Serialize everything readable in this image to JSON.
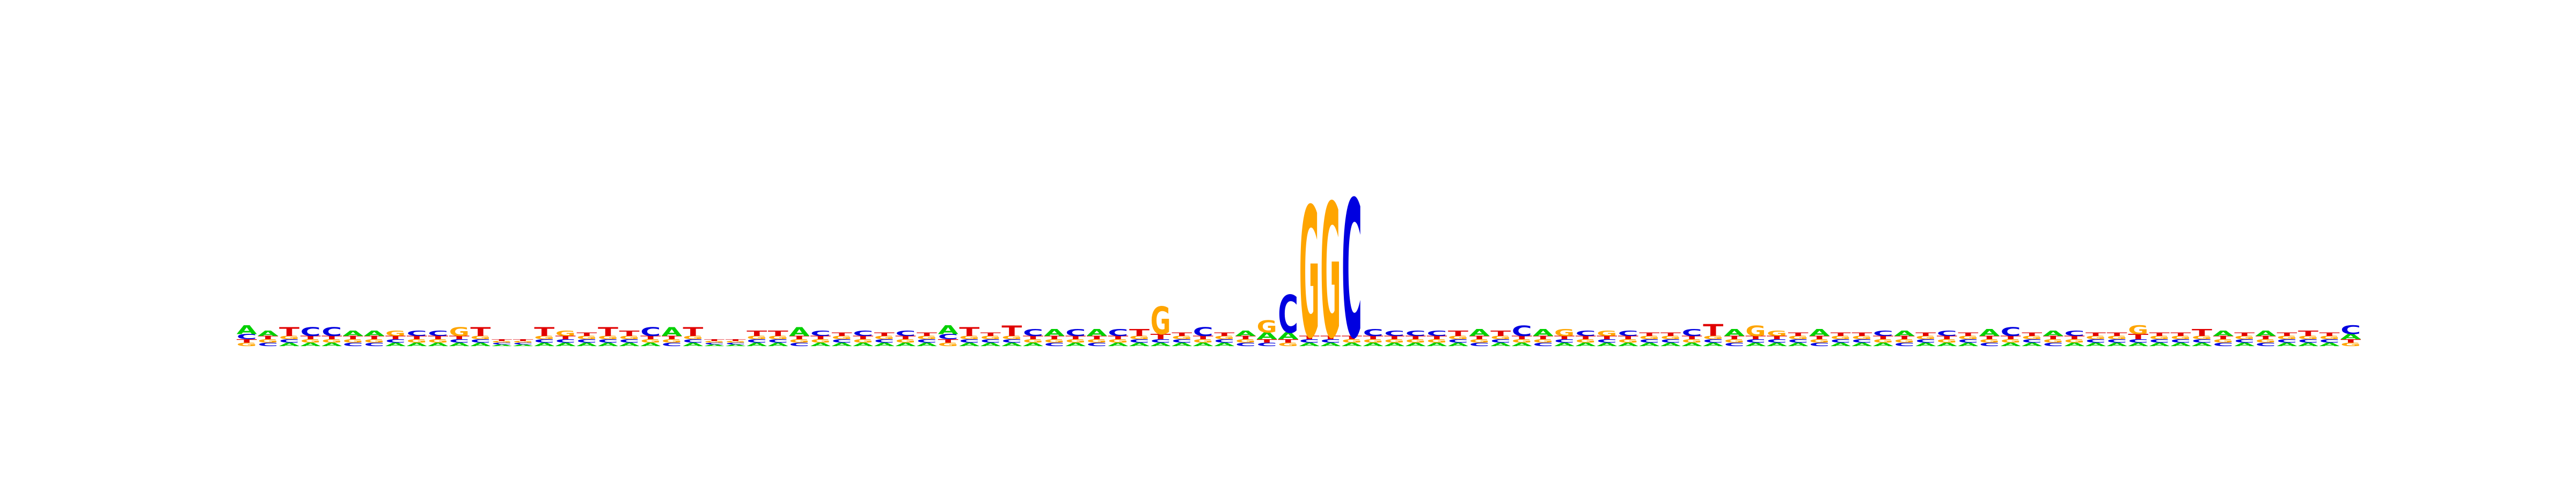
{
  "chart_data": {
    "type": "sequence-logo",
    "title": "",
    "xlabel": "",
    "ylabel": "",
    "alphabet": [
      "A",
      "C",
      "G",
      "T"
    ],
    "colors": {
      "A": "#00d000",
      "C": "#0000e0",
      "G": "#ffa500",
      "T": "#e00000"
    },
    "ylim": [
      0,
      2
    ],
    "positions": [
      {
        "A": 0.05,
        "C": 0.03,
        "G": 0.02,
        "T": 0.02
      },
      {
        "A": 0.03,
        "C": 0.02,
        "G": 0.02,
        "T": 0.02
      },
      {
        "A": 0.02,
        "C": 0.02,
        "G": 0.02,
        "T": 0.05
      },
      {
        "A": 0.02,
        "C": 0.05,
        "G": 0.02,
        "T": 0.02
      },
      {
        "A": 0.02,
        "C": 0.05,
        "G": 0.02,
        "T": 0.02
      },
      {
        "A": 0.03,
        "C": 0.02,
        "G": 0.02,
        "T": 0.02
      },
      {
        "A": 0.03,
        "C": 0.02,
        "G": 0.02,
        "T": 0.02
      },
      {
        "A": 0.02,
        "C": 0.02,
        "G": 0.03,
        "T": 0.02
      },
      {
        "A": 0.02,
        "C": 0.03,
        "G": 0.02,
        "T": 0.02
      },
      {
        "A": 0.02,
        "C": 0.03,
        "G": 0.02,
        "T": 0.02
      },
      {
        "A": 0.02,
        "C": 0.02,
        "G": 0.05,
        "T": 0.02
      },
      {
        "A": 0.02,
        "C": 0.02,
        "G": 0.02,
        "T": 0.05
      },
      {
        "A": 0.01,
        "C": 0.01,
        "G": 0.01,
        "T": 0.01
      },
      {
        "A": 0.01,
        "C": 0.01,
        "G": 0.01,
        "T": 0.01
      },
      {
        "A": 0.02,
        "C": 0.02,
        "G": 0.02,
        "T": 0.05
      },
      {
        "A": 0.02,
        "C": 0.02,
        "G": 0.03,
        "T": 0.02
      },
      {
        "A": 0.02,
        "C": 0.02,
        "G": 0.02,
        "T": 0.02
      },
      {
        "A": 0.02,
        "C": 0.02,
        "G": 0.02,
        "T": 0.05
      },
      {
        "A": 0.02,
        "C": 0.02,
        "G": 0.02,
        "T": 0.03
      },
      {
        "A": 0.02,
        "C": 0.05,
        "G": 0.02,
        "T": 0.02
      },
      {
        "A": 0.05,
        "C": 0.02,
        "G": 0.02,
        "T": 0.02
      },
      {
        "A": 0.02,
        "C": 0.02,
        "G": 0.02,
        "T": 0.05
      },
      {
        "A": 0.01,
        "C": 0.01,
        "G": 0.01,
        "T": 0.01
      },
      {
        "A": 0.01,
        "C": 0.01,
        "G": 0.01,
        "T": 0.01
      },
      {
        "A": 0.02,
        "C": 0.02,
        "G": 0.02,
        "T": 0.03
      },
      {
        "A": 0.02,
        "C": 0.02,
        "G": 0.02,
        "T": 0.03
      },
      {
        "A": 0.05,
        "C": 0.02,
        "G": 0.02,
        "T": 0.02
      },
      {
        "A": 0.02,
        "C": 0.03,
        "G": 0.02,
        "T": 0.02
      },
      {
        "A": 0.02,
        "C": 0.02,
        "G": 0.02,
        "T": 0.02
      },
      {
        "A": 0.02,
        "C": 0.03,
        "G": 0.02,
        "T": 0.02
      },
      {
        "A": 0.02,
        "C": 0.02,
        "G": 0.02,
        "T": 0.02
      },
      {
        "A": 0.02,
        "C": 0.03,
        "G": 0.02,
        "T": 0.02
      },
      {
        "A": 0.02,
        "C": 0.02,
        "G": 0.02,
        "T": 0.02
      },
      {
        "A": 0.05,
        "C": 0.03,
        "G": 0.02,
        "T": 0.02
      },
      {
        "A": 0.02,
        "C": 0.02,
        "G": 0.02,
        "T": 0.05
      },
      {
        "A": 0.02,
        "C": 0.02,
        "G": 0.02,
        "T": 0.02
      },
      {
        "A": 0.02,
        "C": 0.02,
        "G": 0.02,
        "T": 0.06
      },
      {
        "A": 0.02,
        "C": 0.04,
        "G": 0.02,
        "T": 0.02
      },
      {
        "A": 0.04,
        "C": 0.02,
        "G": 0.02,
        "T": 0.02
      },
      {
        "A": 0.02,
        "C": 0.04,
        "G": 0.02,
        "T": 0.02
      },
      {
        "A": 0.04,
        "C": 0.02,
        "G": 0.02,
        "T": 0.02
      },
      {
        "A": 0.02,
        "C": 0.04,
        "G": 0.02,
        "T": 0.02
      },
      {
        "A": 0.02,
        "C": 0.02,
        "G": 0.02,
        "T": 0.04
      },
      {
        "A": 0.02,
        "C": 0.02,
        "G": 0.16,
        "T": 0.03
      },
      {
        "A": 0.02,
        "C": 0.02,
        "G": 0.02,
        "T": 0.02
      },
      {
        "A": 0.02,
        "C": 0.05,
        "G": 0.02,
        "T": 0.02
      },
      {
        "A": 0.02,
        "C": 0.02,
        "G": 0.02,
        "T": 0.02
      },
      {
        "A": 0.03,
        "C": 0.02,
        "G": 0.02,
        "T": 0.02
      },
      {
        "A": 0.04,
        "C": 0.02,
        "G": 0.07,
        "T": 0.02
      },
      {
        "A": 0.04,
        "C": 0.22,
        "G": 0.02,
        "T": 0.02
      },
      {
        "A": 0.02,
        "C": 0.02,
        "G": 0.76,
        "T": 0.02
      },
      {
        "A": 0.02,
        "C": 0.02,
        "G": 0.78,
        "T": 0.02
      },
      {
        "A": 0.02,
        "C": 0.8,
        "G": 0.02,
        "T": 0.02
      },
      {
        "A": 0.02,
        "C": 0.04,
        "G": 0.02,
        "T": 0.02
      },
      {
        "A": 0.02,
        "C": 0.03,
        "G": 0.02,
        "T": 0.02
      },
      {
        "A": 0.02,
        "C": 0.03,
        "G": 0.02,
        "T": 0.02
      },
      {
        "A": 0.02,
        "C": 0.03,
        "G": 0.02,
        "T": 0.02
      },
      {
        "A": 0.02,
        "C": 0.02,
        "G": 0.02,
        "T": 0.03
      },
      {
        "A": 0.04,
        "C": 0.02,
        "G": 0.02,
        "T": 0.02
      },
      {
        "A": 0.02,
        "C": 0.02,
        "G": 0.02,
        "T": 0.03
      },
      {
        "A": 0.02,
        "C": 0.06,
        "G": 0.02,
        "T": 0.02
      },
      {
        "A": 0.04,
        "C": 0.02,
        "G": 0.02,
        "T": 0.02
      },
      {
        "A": 0.02,
        "C": 0.02,
        "G": 0.04,
        "T": 0.02
      },
      {
        "A": 0.02,
        "C": 0.03,
        "G": 0.02,
        "T": 0.02
      },
      {
        "A": 0.02,
        "C": 0.02,
        "G": 0.03,
        "T": 0.02
      },
      {
        "A": 0.02,
        "C": 0.03,
        "G": 0.02,
        "T": 0.02
      },
      {
        "A": 0.02,
        "C": 0.02,
        "G": 0.02,
        "T": 0.02
      },
      {
        "A": 0.02,
        "C": 0.02,
        "G": 0.02,
        "T": 0.02
      },
      {
        "A": 0.02,
        "C": 0.04,
        "G": 0.02,
        "T": 0.02
      },
      {
        "A": 0.02,
        "C": 0.02,
        "G": 0.02,
        "T": 0.07
      },
      {
        "A": 0.04,
        "C": 0.02,
        "G": 0.02,
        "T": 0.02
      },
      {
        "A": 0.02,
        "C": 0.02,
        "G": 0.06,
        "T": 0.02
      },
      {
        "A": 0.02,
        "C": 0.02,
        "G": 0.03,
        "T": 0.02
      },
      {
        "A": 0.02,
        "C": 0.02,
        "G": 0.02,
        "T": 0.02
      },
      {
        "A": 0.04,
        "C": 0.02,
        "G": 0.02,
        "T": 0.02
      },
      {
        "A": 0.02,
        "C": 0.02,
        "G": 0.02,
        "T": 0.02
      },
      {
        "A": 0.02,
        "C": 0.02,
        "G": 0.02,
        "T": 0.02
      },
      {
        "A": 0.02,
        "C": 0.03,
        "G": 0.02,
        "T": 0.02
      },
      {
        "A": 0.03,
        "C": 0.02,
        "G": 0.02,
        "T": 0.02
      },
      {
        "A": 0.02,
        "C": 0.02,
        "G": 0.02,
        "T": 0.02
      },
      {
        "A": 0.02,
        "C": 0.03,
        "G": 0.02,
        "T": 0.02
      },
      {
        "A": 0.02,
        "C": 0.02,
        "G": 0.02,
        "T": 0.02
      },
      {
        "A": 0.04,
        "C": 0.02,
        "G": 0.02,
        "T": 0.02
      },
      {
        "A": 0.02,
        "C": 0.05,
        "G": 0.02,
        "T": 0.02
      },
      {
        "A": 0.02,
        "C": 0.02,
        "G": 0.02,
        "T": 0.02
      },
      {
        "A": 0.03,
        "C": 0.02,
        "G": 0.02,
        "T": 0.02
      },
      {
        "A": 0.02,
        "C": 0.03,
        "G": 0.02,
        "T": 0.02
      },
      {
        "A": 0.02,
        "C": 0.02,
        "G": 0.02,
        "T": 0.02
      },
      {
        "A": 0.02,
        "C": 0.02,
        "G": 0.02,
        "T": 0.02
      },
      {
        "A": 0.02,
        "C": 0.02,
        "G": 0.05,
        "T": 0.03
      },
      {
        "A": 0.02,
        "C": 0.02,
        "G": 0.02,
        "T": 0.02
      },
      {
        "A": 0.02,
        "C": 0.02,
        "G": 0.02,
        "T": 0.02
      },
      {
        "A": 0.02,
        "C": 0.02,
        "G": 0.02,
        "T": 0.04
      },
      {
        "A": 0.03,
        "C": 0.02,
        "G": 0.02,
        "T": 0.02
      },
      {
        "A": 0.02,
        "C": 0.02,
        "G": 0.02,
        "T": 0.02
      },
      {
        "A": 0.03,
        "C": 0.02,
        "G": 0.02,
        "T": 0.02
      },
      {
        "A": 0.02,
        "C": 0.02,
        "G": 0.02,
        "T": 0.02
      },
      {
        "A": 0.02,
        "C": 0.02,
        "G": 0.02,
        "T": 0.03
      },
      {
        "A": 0.02,
        "C": 0.02,
        "G": 0.02,
        "T": 0.02
      },
      {
        "A": 0.03,
        "C": 0.05,
        "G": 0.02,
        "T": 0.02
      }
    ]
  }
}
